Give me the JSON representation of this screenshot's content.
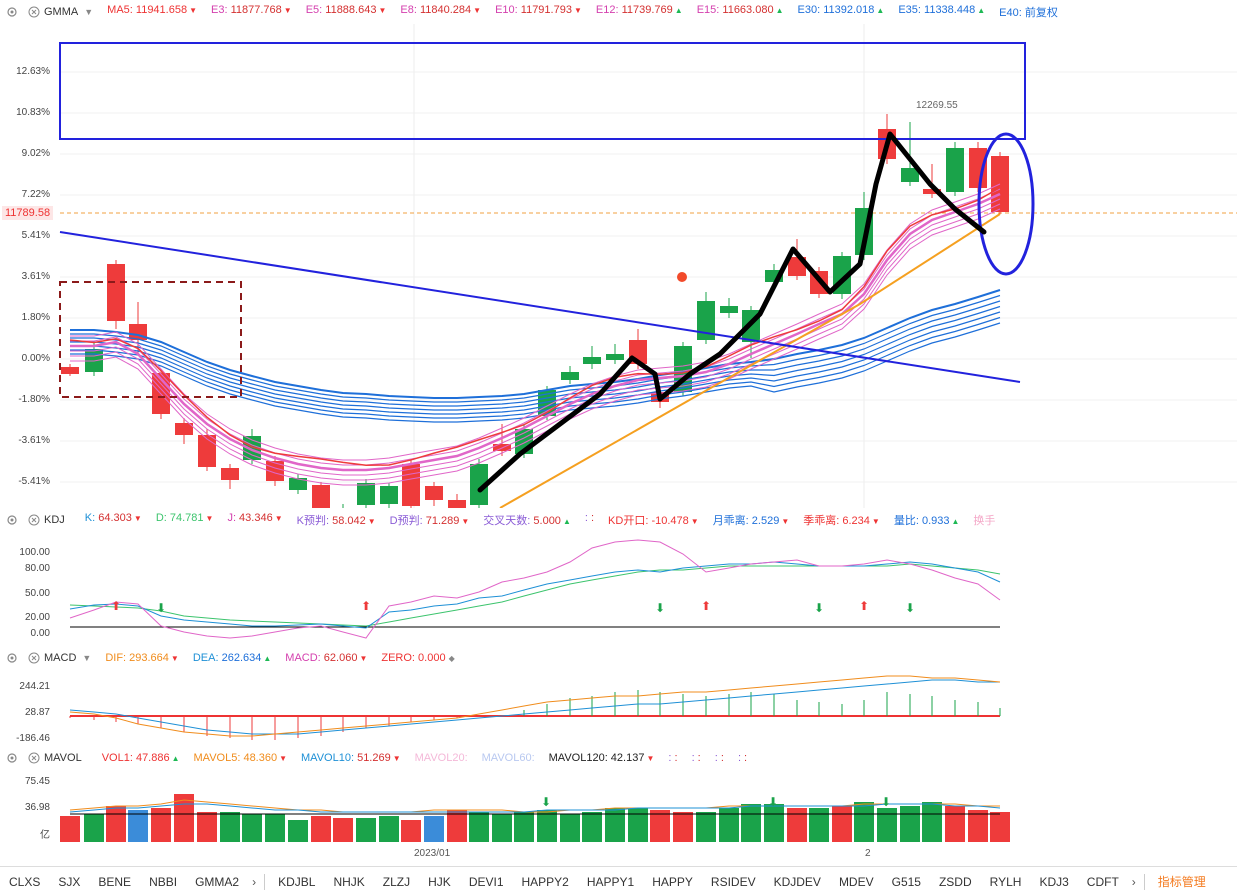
{
  "main": {
    "name": "GMMA",
    "items": [
      {
        "label": "MA5:",
        "value": "11941.658",
        "dir": "dn",
        "color": "#e33"
      },
      {
        "label": "E3:",
        "value": "11877.768",
        "dir": "dn",
        "color": "#d43fae"
      },
      {
        "label": "E5:",
        "value": "11888.643",
        "dir": "dn",
        "color": "#d43fae"
      },
      {
        "label": "E8:",
        "value": "11840.284",
        "dir": "dn",
        "color": "#d43fae"
      },
      {
        "label": "E10:",
        "value": "11791.793",
        "dir": "dn",
        "color": "#d43fae"
      },
      {
        "label": "E12:",
        "value": "11739.769",
        "dir": "up",
        "color": "#d43fae"
      },
      {
        "label": "E15:",
        "value": "11663.080",
        "dir": "up",
        "color": "#d43fae"
      },
      {
        "label": "E30:",
        "value": "11392.018",
        "dir": "up",
        "color": "#1e6fd9"
      },
      {
        "label": "E35:",
        "value": "11338.448",
        "dir": "up",
        "color": "#1e6fd9"
      },
      {
        "label": "E40:",
        "value": "前复权",
        "dir": "",
        "color": "#1e6fd9"
      }
    ],
    "yticks": [
      "12.63%",
      "10.83%",
      "9.02%",
      "7.22%",
      "5.41%",
      "3.61%",
      "1.80%",
      "0.00%",
      "-1.80%",
      "-3.61%",
      "-5.41%"
    ],
    "current_price": "11789.58",
    "peak_label": "12269.55"
  },
  "kdj": {
    "name": "KDJ",
    "items": [
      {
        "label": "K:",
        "value": "64.303",
        "dir": "dn",
        "color": "#1e90d6"
      },
      {
        "label": "D:",
        "value": "74.781",
        "dir": "dn",
        "color": "#3cc46d"
      },
      {
        "label": "J:",
        "value": "43.346",
        "dir": "dn",
        "color": "#d43fae"
      },
      {
        "label": "K预判:",
        "value": "58.042",
        "dir": "dn",
        "color": "#8a5bd6"
      },
      {
        "label": "D预判:",
        "value": "71.289",
        "dir": "dn",
        "color": "#8a5bd6"
      },
      {
        "label": "交叉天数:",
        "value": "5.000",
        "dir": "up",
        "color": "#8a5bd6"
      },
      {
        "label": ":",
        "value": ":",
        "dir": "",
        "color": "#8a5bd6"
      },
      {
        "label": "KD开口:",
        "value": "-10.478",
        "dir": "dn",
        "color": "#e33"
      },
      {
        "label": "月乖离:",
        "value": "2.529",
        "dir": "dn",
        "color": "#1e6fd9"
      },
      {
        "label": "季乖离:",
        "value": "6.234",
        "dir": "dn",
        "color": "#e33"
      },
      {
        "label": "量比:",
        "value": "0.933",
        "dir": "up",
        "color": "#1e6fd9"
      },
      {
        "label": "换手",
        "value": "",
        "dir": "",
        "color": "#f4a8c8"
      }
    ],
    "yticks": [
      "100.00",
      "80.00",
      "50.00",
      "20.00",
      "0.00"
    ]
  },
  "macd": {
    "name": "MACD",
    "items": [
      {
        "label": "DIF:",
        "value": "293.664",
        "dir": "dn",
        "color": "#f08c1c"
      },
      {
        "label": "DEA:",
        "value": "262.634",
        "dir": "up",
        "color": "#1e90d6"
      },
      {
        "label": "MACD:",
        "value": "62.060",
        "dir": "dn",
        "color": "#d43fae"
      },
      {
        "label": "ZERO:",
        "value": "0.000",
        "dir": "dot",
        "color": "#e33"
      }
    ],
    "yticks": [
      "244.21",
      "28.87",
      "-186.46"
    ]
  },
  "mavol": {
    "name": "MAVOL",
    "items": [
      {
        "label": "VOL1:",
        "value": "47.886",
        "dir": "up",
        "color": "#e33"
      },
      {
        "label": "MAVOL5:",
        "value": "48.360",
        "dir": "dn",
        "color": "#f08c1c"
      },
      {
        "label": "MAVOL10:",
        "value": "51.269",
        "dir": "dn",
        "color": "#1e90d6"
      },
      {
        "label": "MAVOL20:",
        "value": "",
        "dir": "",
        "color": "#f4b8d8"
      },
      {
        "label": "MAVOL60:",
        "value": "",
        "dir": "",
        "color": "#b8c8f0"
      },
      {
        "label": "MAVOL120:",
        "value": "42.137",
        "dir": "dn",
        "color": "#222"
      },
      {
        "label": ":",
        "value": ":",
        "dir": "",
        "color": "#8a5bd6"
      },
      {
        "label": ":",
        "value": ":",
        "dir": "",
        "color": "#8a5bd6"
      },
      {
        "label": ":",
        "value": ":",
        "dir": "",
        "color": "#8a5bd6"
      },
      {
        "label": ":",
        "value": ":",
        "dir": "",
        "color": "#8a5bd6"
      }
    ],
    "yticks": [
      "75.45",
      "36.98",
      "亿"
    ],
    "xlabels": [
      "2023/01",
      "2"
    ]
  },
  "tabs": [
    "CLXS",
    "SJX",
    "BENE",
    "NBBI",
    "GMMA2",
    "KDJBL",
    "NHJK",
    "ZLZJ",
    "HJK",
    "DEVI1",
    "HAPPY2",
    "HAPPY1",
    "HAPPY",
    "RSIDEV",
    "KDJDEV",
    "MDEV",
    "G515",
    "ZSDD",
    "RYLH",
    "KDJ3",
    "CDFT"
  ],
  "manage_label": "指标管理",
  "colors": {
    "up": "#1db954",
    "down": "#e33",
    "accent": "#f47b20",
    "blue": "#1e6fd9"
  }
}
